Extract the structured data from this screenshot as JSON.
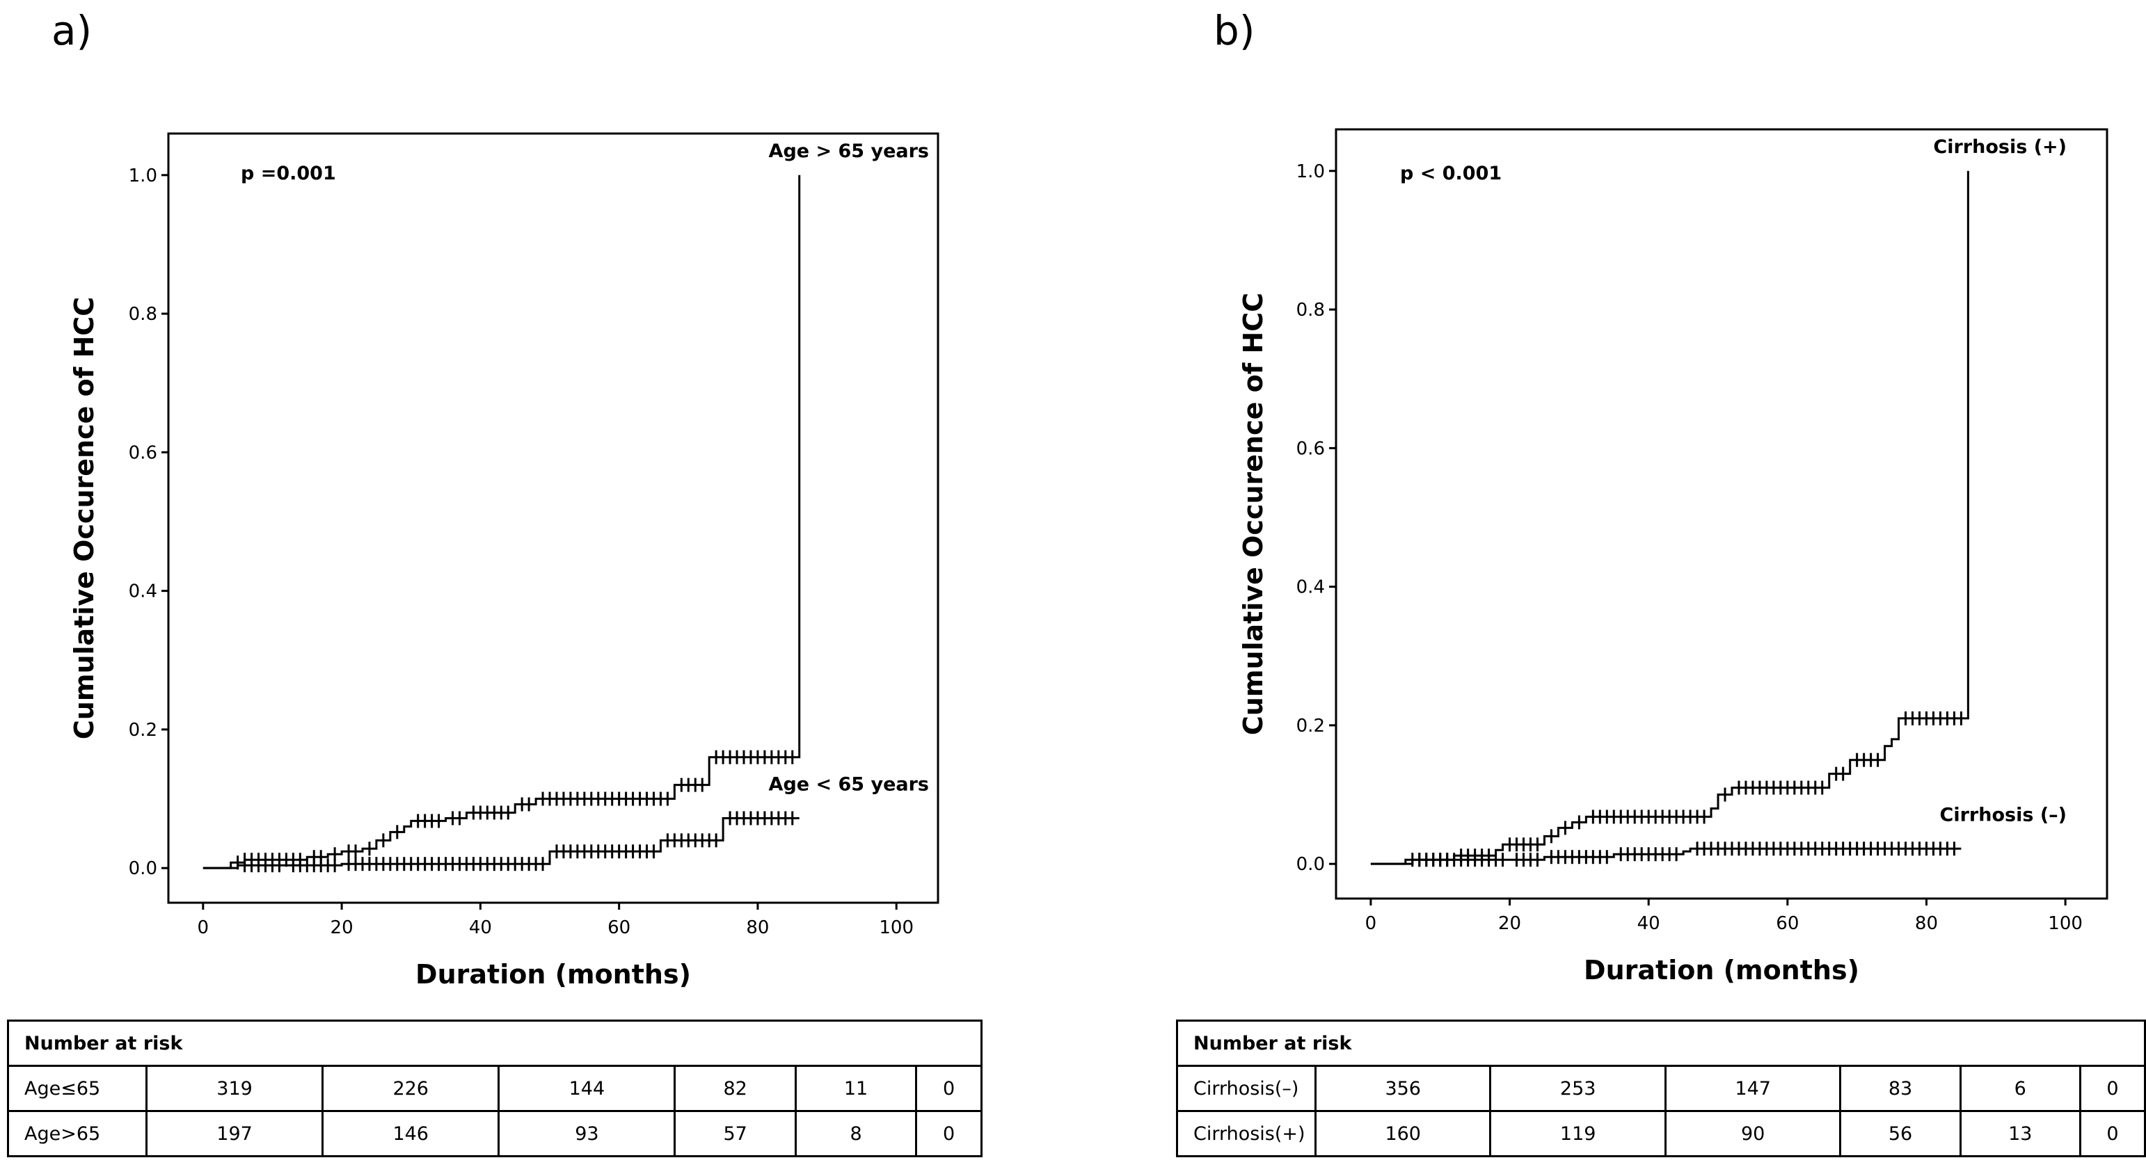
{
  "panels": [
    {
      "id": "a",
      "panel_label": "a)",
      "risk_table": {
        "header": "Number at risk",
        "rows": [
          {
            "label": "Age≤65",
            "values": [
              "319",
              "226",
              "144",
              "82",
              "11",
              "0"
            ]
          },
          {
            "label": "Age>65",
            "values": [
              "197",
              "146",
              "93",
              "57",
              "8",
              "0"
            ]
          }
        ]
      }
    },
    {
      "id": "b",
      "panel_label": "b)",
      "risk_table": {
        "header": "Number at risk",
        "rows": [
          {
            "label": "Cirrhosis(–)",
            "values": [
              "356",
              "253",
              "147",
              "83",
              "6",
              "0"
            ]
          },
          {
            "label": "Cirrhosis(+)",
            "values": [
              "160",
              "119",
              "90",
              "56",
              "13",
              "0"
            ]
          }
        ]
      }
    }
  ],
  "chart_data": [
    {
      "type": "line",
      "subtype": "kaplan-meier-cumulative-incidence",
      "title": "",
      "xlabel": "Duration (months)",
      "ylabel": "Cumulative Occurence of HCC",
      "xlim": [
        -5,
        106
      ],
      "ylim": [
        -0.05,
        1.06
      ],
      "xticks": [
        0,
        20,
        40,
        60,
        80,
        100
      ],
      "xtick_labels": [
        "0",
        "20",
        "40",
        "60",
        "80",
        "100"
      ],
      "yticks": [
        0.0,
        0.2,
        0.4,
        0.6,
        0.8,
        1.0
      ],
      "ytick_labels": [
        "0.0",
        "0.2",
        "0.4",
        "0.6",
        "0.8",
        "1.0"
      ],
      "annotation": "p =0.001",
      "series": [
        {
          "name": "Age > 65 years",
          "steps": [
            [
              0,
              0
            ],
            [
              4,
              0.008
            ],
            [
              6,
              0.012
            ],
            [
              15,
              0.016
            ],
            [
              18,
              0.02
            ],
            [
              20,
              0.024
            ],
            [
              23,
              0.028
            ],
            [
              25,
              0.04
            ],
            [
              27,
              0.052
            ],
            [
              29,
              0.06
            ],
            [
              30,
              0.068
            ],
            [
              35,
              0.072
            ],
            [
              38,
              0.08
            ],
            [
              45,
              0.092
            ],
            [
              48,
              0.1
            ],
            [
              68,
              0.12
            ],
            [
              73,
              0.16
            ],
            [
              86,
              1.0
            ]
          ],
          "end_x": 86,
          "censor_x": [
            5,
            6,
            7,
            8,
            9,
            10,
            11,
            12,
            13,
            14,
            16,
            17,
            19,
            21,
            22,
            24,
            26,
            28,
            31,
            32,
            33,
            34,
            36,
            37,
            39,
            40,
            41,
            42,
            43,
            44,
            46,
            47,
            49,
            50,
            51,
            52,
            53,
            54,
            55,
            56,
            57,
            58,
            59,
            60,
            61,
            62,
            63,
            64,
            65,
            66,
            67,
            69,
            70,
            71,
            72,
            74,
            75,
            76,
            77,
            78,
            79,
            80,
            81,
            82,
            83,
            84,
            85
          ]
        },
        {
          "name": "Age < 65 years",
          "steps": [
            [
              0,
              0
            ],
            [
              5,
              0.004
            ],
            [
              12,
              0.004
            ],
            [
              20,
              0.006
            ],
            [
              50,
              0.024
            ],
            [
              66,
              0.04
            ],
            [
              75,
              0.072
            ],
            [
              86,
              0.072
            ]
          ],
          "end_x": 86,
          "censor_x": [
            6,
            7,
            8,
            9,
            10,
            11,
            13,
            14,
            15,
            16,
            17,
            18,
            19,
            21,
            22,
            23,
            24,
            25,
            26,
            27,
            28,
            29,
            30,
            31,
            32,
            33,
            34,
            35,
            36,
            37,
            38,
            39,
            40,
            41,
            42,
            43,
            44,
            45,
            46,
            47,
            48,
            49,
            51,
            52,
            53,
            54,
            55,
            56,
            57,
            58,
            59,
            60,
            61,
            62,
            63,
            64,
            65,
            67,
            68,
            69,
            70,
            71,
            72,
            73,
            74,
            76,
            77,
            78,
            79,
            80,
            81,
            82,
            83,
            84,
            85
          ]
        }
      ]
    },
    {
      "type": "line",
      "subtype": "kaplan-meier-cumulative-incidence",
      "title": "",
      "xlabel": "Duration (months)",
      "ylabel": "Cumulative Occurence of HCC",
      "xlim": [
        -5,
        106
      ],
      "ylim": [
        -0.05,
        1.06
      ],
      "xticks": [
        0,
        20,
        40,
        60,
        80,
        100
      ],
      "xtick_labels": [
        "0",
        "20",
        "40",
        "60",
        "80",
        "100"
      ],
      "yticks": [
        0.0,
        0.2,
        0.4,
        0.6,
        0.8,
        1.0
      ],
      "ytick_labels": [
        "0.0",
        "0.2",
        "0.4",
        "0.6",
        "0.8",
        "1.0"
      ],
      "annotation": "p < 0.001",
      "series": [
        {
          "name": "Cirrhosis (+)",
          "steps": [
            [
              0,
              0
            ],
            [
              5,
              0.006
            ],
            [
              12,
              0.012
            ],
            [
              18,
              0.02
            ],
            [
              19,
              0.028
            ],
            [
              25,
              0.04
            ],
            [
              27,
              0.052
            ],
            [
              29,
              0.06
            ],
            [
              31,
              0.068
            ],
            [
              49,
              0.08
            ],
            [
              50,
              0.1
            ],
            [
              52,
              0.11
            ],
            [
              66,
              0.13
            ],
            [
              69,
              0.15
            ],
            [
              74,
              0.17
            ],
            [
              75,
              0.18
            ],
            [
              76,
              0.21
            ],
            [
              86,
              1.0
            ]
          ],
          "end_x": 86,
          "censor_x": [
            6,
            7,
            8,
            9,
            10,
            11,
            13,
            14,
            15,
            16,
            17,
            20,
            21,
            22,
            23,
            24,
            26,
            28,
            30,
            32,
            33,
            34,
            35,
            36,
            37,
            38,
            39,
            40,
            41,
            42,
            43,
            44,
            45,
            46,
            47,
            48,
            51,
            53,
            54,
            55,
            56,
            57,
            58,
            59,
            60,
            61,
            62,
            63,
            64,
            65,
            67,
            68,
            70,
            71,
            72,
            73,
            77,
            78,
            79,
            80,
            81,
            82,
            83,
            84,
            85
          ]
        },
        {
          "name": "Cirrhosis (–)",
          "steps": [
            [
              0,
              0
            ],
            [
              6,
              0.006
            ],
            [
              20,
              0.006
            ],
            [
              25,
              0.01
            ],
            [
              35,
              0.014
            ],
            [
              45,
              0.018
            ],
            [
              46,
              0.022
            ],
            [
              85,
              0.022
            ]
          ],
          "end_x": 85,
          "censor_x": [
            7,
            8,
            9,
            10,
            11,
            12,
            13,
            14,
            15,
            16,
            17,
            18,
            19,
            21,
            22,
            23,
            24,
            26,
            27,
            28,
            29,
            30,
            31,
            32,
            33,
            34,
            36,
            37,
            38,
            39,
            40,
            41,
            42,
            43,
            44,
            47,
            48,
            49,
            50,
            51,
            52,
            53,
            54,
            55,
            56,
            57,
            58,
            59,
            60,
            61,
            62,
            63,
            64,
            65,
            66,
            67,
            68,
            69,
            70,
            71,
            72,
            73,
            74,
            75,
            76,
            77,
            78,
            79,
            80,
            81,
            82,
            83,
            84
          ]
        }
      ]
    }
  ]
}
